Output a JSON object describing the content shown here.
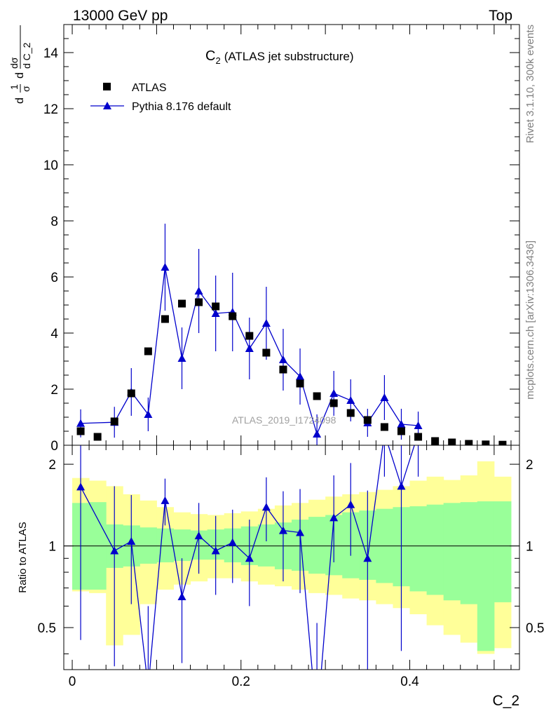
{
  "header": {
    "left": "13000 GeV pp",
    "right": "Top"
  },
  "side": {
    "rivet": "Rivet 3.1.10,  300k events",
    "mcplots": "mcplots.cern.ch [arXiv:1306.3436]"
  },
  "chart_data": [
    {
      "type": "scatter",
      "title": "C",
      "title_sub": "2",
      "title_rest": "(ATLAS jet substructure)",
      "watermark": "ATLAS_2019_I1724098",
      "ylabel": {
        "n1": "1",
        "d1": "σ",
        "n2": "dσ",
        "d2": "d C_2",
        "prefix1": "d",
        "prefix2": "d"
      },
      "xlim": [
        -0.01,
        0.53
      ],
      "ylim": [
        0,
        15
      ],
      "yticks": [
        "0",
        "2",
        "4",
        "6",
        "8",
        "10",
        "12",
        "14"
      ],
      "legend_placement": "top-left",
      "colors": {
        "data": "#000000",
        "mc": "#0000cc"
      },
      "series": [
        {
          "name": "ATLAS",
          "marker": "square",
          "x": [
            0.01,
            0.03,
            0.05,
            0.07,
            0.09,
            0.11,
            0.13,
            0.15,
            0.17,
            0.19,
            0.21,
            0.23,
            0.25,
            0.27,
            0.29,
            0.31,
            0.33,
            0.35,
            0.37,
            0.39,
            0.41,
            0.43,
            0.45,
            0.47,
            0.49,
            0.51
          ],
          "y": [
            0.5,
            0.3,
            0.85,
            1.85,
            3.35,
            4.5,
            5.05,
            5.1,
            4.95,
            4.6,
            3.9,
            3.3,
            2.7,
            2.2,
            1.75,
            1.5,
            1.15,
            0.9,
            0.65,
            0.5,
            0.3,
            0.15,
            0.1,
            0.05,
            0.03,
            0.02
          ]
        },
        {
          "name": "Pythia 8.176 default",
          "marker": "triangle",
          "x": [
            0.01,
            0.05,
            0.07,
            0.09,
            0.11,
            0.13,
            0.15,
            0.17,
            0.19,
            0.21,
            0.23,
            0.25,
            0.27,
            0.29,
            0.31,
            0.33,
            0.35,
            0.37,
            0.39,
            0.41
          ],
          "y": [
            0.78,
            0.82,
            1.9,
            1.1,
            6.35,
            3.1,
            5.5,
            4.7,
            4.75,
            3.45,
            4.35,
            3.05,
            2.45,
            0.4,
            1.85,
            1.6,
            0.8,
            1.7,
            0.75,
            0.7
          ],
          "err": [
            0.5,
            0.55,
            0.85,
            0.6,
            1.55,
            1.1,
            1.5,
            1.35,
            1.4,
            1.1,
            1.3,
            1.1,
            1.0,
            0.7,
            0.8,
            0.75,
            0.5,
            0.8,
            0.55,
            0.5
          ]
        }
      ]
    },
    {
      "type": "line",
      "ylabel": "Ratio to ATLAS",
      "xlabel": "C_2",
      "xlim": [
        -0.01,
        0.53
      ],
      "ylim": [
        0.35,
        2.35
      ],
      "xticks": [
        "0",
        "0.2",
        "0.4"
      ],
      "yticks": [
        "0.5",
        "1",
        "2"
      ],
      "colors": {
        "band_inner": "#99ff99",
        "band_outer": "#ffff99",
        "line": "#0000cc"
      },
      "band_edges": [
        0,
        0.02,
        0.04,
        0.06,
        0.08,
        0.1,
        0.12,
        0.14,
        0.16,
        0.18,
        0.2,
        0.22,
        0.24,
        0.26,
        0.28,
        0.3,
        0.32,
        0.34,
        0.36,
        0.38,
        0.4,
        0.42,
        0.44,
        0.46,
        0.48,
        0.5,
        0.52
      ],
      "band_outer": {
        "lo": [
          0.68,
          0.67,
          0.43,
          0.47,
          0.61,
          0.69,
          0.72,
          0.74,
          0.76,
          0.76,
          0.74,
          0.72,
          0.71,
          0.69,
          0.67,
          0.66,
          0.64,
          0.63,
          0.61,
          0.59,
          0.56,
          0.51,
          0.47,
          0.44,
          0.4,
          0.42
        ],
        "hi": [
          1.78,
          1.74,
          1.66,
          1.55,
          1.47,
          1.39,
          1.33,
          1.31,
          1.3,
          1.32,
          1.34,
          1.37,
          1.41,
          1.44,
          1.48,
          1.52,
          1.55,
          1.58,
          1.61,
          1.66,
          1.74,
          1.8,
          1.75,
          1.82,
          2.05,
          1.8
        ]
      },
      "band_inner": {
        "lo": [
          0.69,
          0.69,
          0.83,
          0.84,
          0.86,
          0.87,
          0.88,
          0.89,
          0.89,
          0.87,
          0.85,
          0.84,
          0.82,
          0.81,
          0.79,
          0.78,
          0.76,
          0.75,
          0.73,
          0.71,
          0.68,
          0.66,
          0.63,
          0.61,
          0.41,
          0.62
        ],
        "hi": [
          1.44,
          1.45,
          1.2,
          1.19,
          1.17,
          1.16,
          1.15,
          1.14,
          1.15,
          1.16,
          1.18,
          1.2,
          1.22,
          1.25,
          1.28,
          1.3,
          1.33,
          1.35,
          1.37,
          1.39,
          1.4,
          1.42,
          1.44,
          1.45,
          1.46,
          1.46
        ]
      },
      "series": [
        {
          "name": "Pythia 8.176 default",
          "x": [
            0.01,
            0.05,
            0.07,
            0.09,
            0.11,
            0.13,
            0.15,
            0.17,
            0.19,
            0.21,
            0.23,
            0.25,
            0.27,
            0.29,
            0.31,
            0.33,
            0.35,
            0.37,
            0.39,
            0.41
          ],
          "y": [
            1.65,
            0.96,
            1.04,
            0.3,
            1.47,
            0.65,
            1.09,
            0.96,
            1.03,
            0.9,
            1.39,
            1.14,
            1.12,
            0.22,
            1.27,
            1.42,
            0.9,
            2.6,
            1.66,
            2.6
          ],
          "err_lo": [
            1.2,
            0.6,
            0.43,
            0.3,
            0.28,
            0.28,
            0.3,
            0.3,
            0.3,
            0.3,
            0.35,
            0.4,
            0.45,
            0.3,
            0.4,
            0.5,
            0.6,
            0.8,
            1.25,
            0.8
          ],
          "err_hi": [
            1.5,
            0.7,
            0.5,
            0.3,
            0.3,
            0.25,
            0.35,
            0.33,
            0.33,
            0.35,
            0.4,
            0.45,
            0.5,
            0.3,
            0.55,
            0.6,
            0.7,
            0.9,
            0.9,
            0.9
          ]
        }
      ]
    }
  ]
}
